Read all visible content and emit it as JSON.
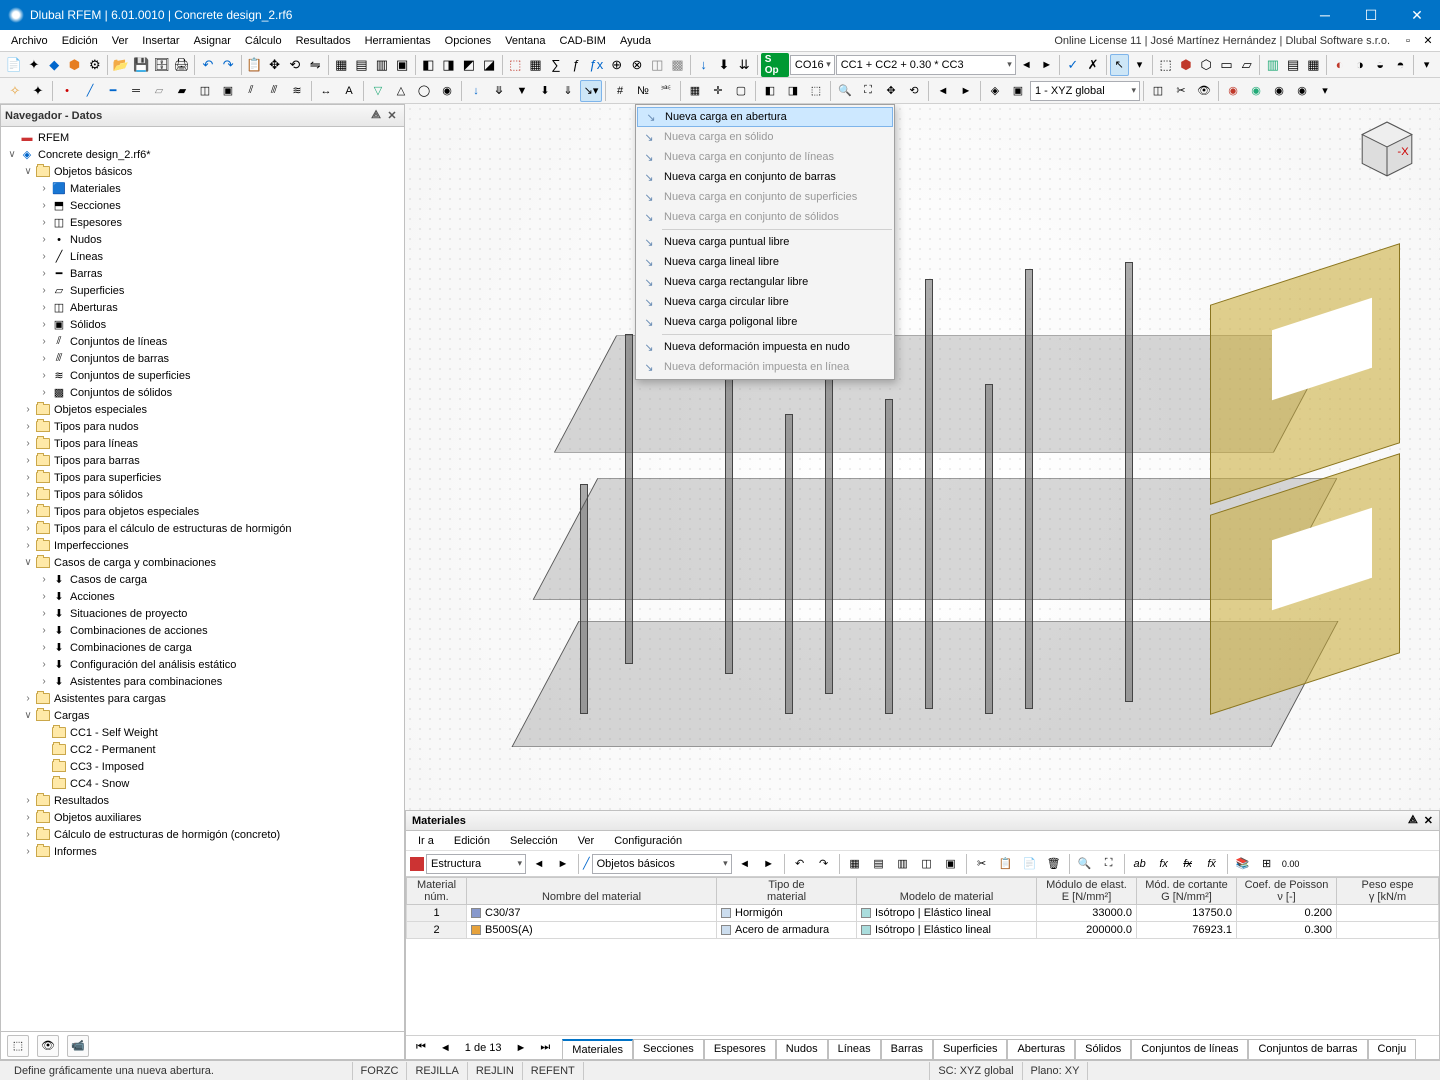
{
  "title": "Dlubal RFEM | 6.01.0010 | Concrete design_2.rf6",
  "menubar": {
    "items": [
      "Archivo",
      "Edición",
      "Ver",
      "Insertar",
      "Asignar",
      "Cálculo",
      "Resultados",
      "Herramientas",
      "Opciones",
      "Ventana",
      "CAD-BIM",
      "Ayuda"
    ],
    "right": "Online License 11 | José Martínez Hernández | Dlubal Software s.r.o."
  },
  "toolbar1": {
    "co_label": "CO16",
    "co_formula": "CC1 + CC2 + 0.30 * CC3",
    "sop": "S Op"
  },
  "toolbar2": {
    "view_combo": "1 - XYZ global"
  },
  "navigator": {
    "title": "Navegador - Datos",
    "root": "RFEM",
    "file": "Concrete design_2.rf6*",
    "basic": "Objetos básicos",
    "basic_items": [
      "Materiales",
      "Secciones",
      "Espesores",
      "Nudos",
      "Líneas",
      "Barras",
      "Superficies",
      "Aberturas",
      "Sólidos",
      "Conjuntos de líneas",
      "Conjuntos de barras",
      "Conjuntos de superficies",
      "Conjuntos de sólidos"
    ],
    "groups": [
      "Objetos especiales",
      "Tipos para nudos",
      "Tipos para líneas",
      "Tipos para barras",
      "Tipos para superficies",
      "Tipos para sólidos",
      "Tipos para objetos especiales",
      "Tipos para el cálculo de estructuras de hormigón",
      "Imperfecciones"
    ],
    "loadcases": "Casos de carga y combinaciones",
    "loadcases_items": [
      "Casos de carga",
      "Acciones",
      "Situaciones de proyecto",
      "Combinaciones de acciones",
      "Combinaciones de carga",
      "Configuración del análisis estático",
      "Asistentes para combinaciones"
    ],
    "after": [
      "Asistentes para cargas"
    ],
    "loads": "Cargas",
    "loads_items": [
      "CC1 - Self Weight",
      "CC2 - Permanent",
      "CC3 - Imposed",
      "CC4 - Snow"
    ],
    "tail": [
      "Resultados",
      "Objetos auxiliares",
      "Cálculo de estructuras de hormigón (concreto)",
      "Informes"
    ]
  },
  "context_menu": {
    "g1": [
      {
        "t": "Nueva carga en abertura",
        "hl": true
      },
      {
        "t": "Nueva carga en sólido",
        "dis": true
      },
      {
        "t": "Nueva carga en conjunto de líneas",
        "dis": true
      },
      {
        "t": "Nueva carga en conjunto de barras"
      },
      {
        "t": "Nueva carga en conjunto de superficies",
        "dis": true
      },
      {
        "t": "Nueva carga en conjunto de sólidos",
        "dis": true
      }
    ],
    "g2": [
      {
        "t": "Nueva carga puntual libre"
      },
      {
        "t": "Nueva carga lineal libre"
      },
      {
        "t": "Nueva carga rectangular libre"
      },
      {
        "t": "Nueva carga circular libre"
      },
      {
        "t": "Nueva carga poligonal libre"
      }
    ],
    "g3": [
      {
        "t": "Nueva deformación impuesta en nudo"
      },
      {
        "t": "Nueva deformación impuesta en línea",
        "dis": true
      }
    ]
  },
  "materials_panel": {
    "title": "Materiales",
    "submenu": [
      "Ir a",
      "Edición",
      "Selección",
      "Ver",
      "Configuración"
    ],
    "combo1": "Estructura",
    "combo2": "Objetos básicos",
    "headers": {
      "c1a": "Material",
      "c1b": "núm.",
      "c2": "Nombre del material",
      "c3a": "Tipo de",
      "c3b": "material",
      "c4": "Modelo de material",
      "c5a": "Módulo de elast.",
      "c5b": "E [N/mm²]",
      "c6a": "Mód. de cortante",
      "c6b": "G [N/mm²]",
      "c7a": "Coef. de Poisson",
      "c7b": "ν [-]",
      "c8a": "Peso espe",
      "c8b": "γ [kN/m"
    },
    "rows": [
      {
        "n": "1",
        "name": "C30/37",
        "sw": "#8899cc",
        "type": "Hormigón",
        "tsw": "#cde",
        "model": "Isótropo | Elástico lineal",
        "msw": "#add",
        "E": "33000.0",
        "G": "13750.0",
        "v": "0.200"
      },
      {
        "n": "2",
        "name": "B500S(A)",
        "sw": "#e6a23c",
        "type": "Acero de armadura",
        "tsw": "#cde",
        "model": "Isótropo | Elástico lineal",
        "msw": "#add",
        "E": "200000.0",
        "G": "76923.1",
        "v": "0.300"
      }
    ],
    "pager": {
      "pos": "1 de 13",
      "tabs": [
        "Materiales",
        "Secciones",
        "Espesores",
        "Nudos",
        "Líneas",
        "Barras",
        "Superficies",
        "Aberturas",
        "Sólidos",
        "Conjuntos de líneas",
        "Conjuntos de barras",
        "Conju"
      ]
    }
  },
  "status": {
    "hint": "Define gráficamente una nueva abertura.",
    "cells": [
      "FORZC",
      "REJILLA",
      "REJLIN",
      "REFENT"
    ],
    "sc": "SC: XYZ global",
    "plano": "Plano: XY"
  },
  "colors": {
    "accent": "#0173c7",
    "wall": "#c9a832"
  }
}
